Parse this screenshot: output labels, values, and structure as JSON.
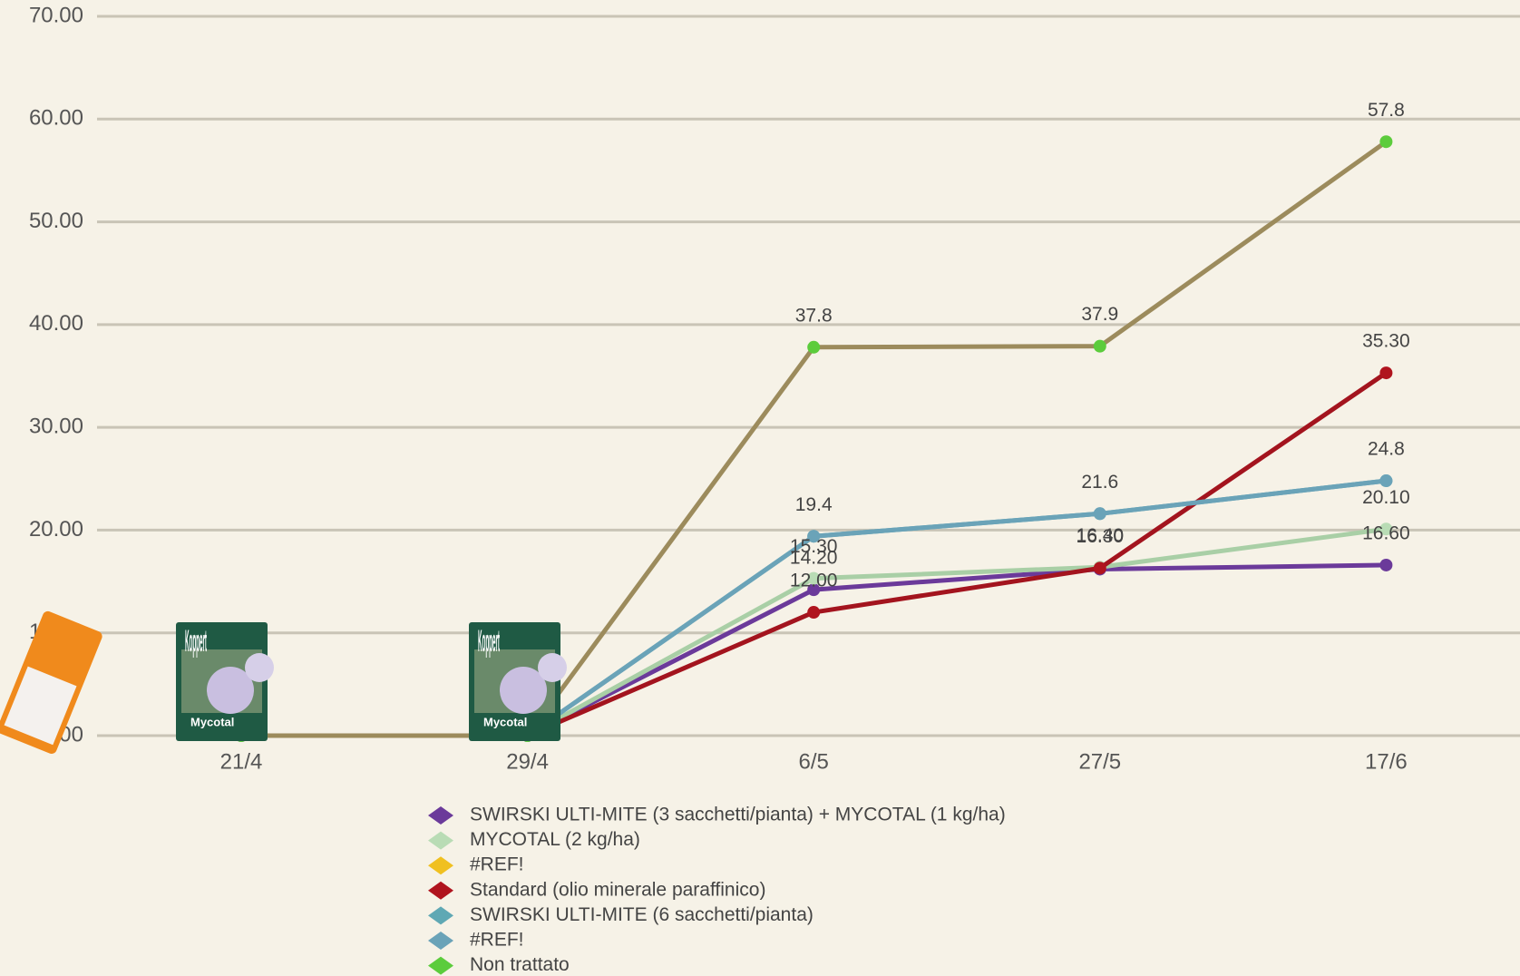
{
  "chart_data": {
    "type": "line",
    "categories": [
      "21/4",
      "29/4",
      "6/5",
      "27/5",
      "17/6"
    ],
    "ylim": [
      0,
      70
    ],
    "yticks": [
      {
        "value": 0,
        "label": "0.00"
      },
      {
        "value": 10,
        "label": "10.00"
      },
      {
        "value": 20,
        "label": "20.00"
      },
      {
        "value": 30,
        "label": "30.00"
      },
      {
        "value": 40,
        "label": "40.00"
      },
      {
        "value": 50,
        "label": "50.00"
      },
      {
        "value": 60,
        "label": "60.00"
      },
      {
        "value": 70,
        "label": "70.00"
      }
    ],
    "grid": true,
    "series": [
      {
        "name": "SWIRSKI ULTI-MITE (3 sacchetti/pianta) + MYCOTAL (1 kg/ha)",
        "color": "#6b3a9a",
        "marker_color": "#6b3a9a",
        "values": [
          0,
          0,
          14.2,
          16.2,
          16.6
        ],
        "value_labels": [
          null,
          null,
          "14.20",
          null,
          "16.60"
        ]
      },
      {
        "name": "MYCOTAL (2 kg/ha)",
        "color": "#a9cfa6",
        "marker_color": "#b9dcb5",
        "values": [
          0,
          0,
          15.3,
          16.4,
          20.1
        ],
        "value_labels": [
          null,
          null,
          "15.30",
          "16.40",
          "20.10"
        ]
      },
      {
        "name": "#REF!",
        "color": "#f0c020",
        "marker_color": "#f0c020",
        "values": [
          null,
          null,
          null,
          null,
          null
        ]
      },
      {
        "name": "Standard (olio minerale paraffinico)",
        "color": "#a3141e",
        "marker_color": "#b0141e",
        "values": [
          0,
          0,
          12.0,
          16.3,
          35.3
        ],
        "value_labels": [
          null,
          null,
          "12.00",
          "16.30",
          "35.30"
        ]
      },
      {
        "name": "SWIRSKI ULTI-MITE (6 sacchetti/pianta)",
        "color": "#5fa8b4",
        "marker_color": "#5fa8b4",
        "values": [
          0,
          0,
          19.4,
          21.6,
          24.8
        ]
      },
      {
        "name": "#REF!",
        "color": "#6aa3b8",
        "marker_color": "#6aa3b8",
        "values": [
          0,
          0,
          19.4,
          21.6,
          24.8
        ],
        "value_labels": [
          null,
          null,
          "19.4",
          "21.6",
          "24.8"
        ]
      },
      {
        "name": "Non trattato",
        "color": "#9c8b5c",
        "marker_color": "#5ccc3c",
        "values": [
          0,
          0,
          37.8,
          37.9,
          57.8
        ],
        "value_labels": [
          null,
          null,
          "37.8",
          "37.9",
          "57.8"
        ]
      }
    ]
  },
  "images": {
    "brand": "Koppert",
    "product": "Mycotal"
  }
}
